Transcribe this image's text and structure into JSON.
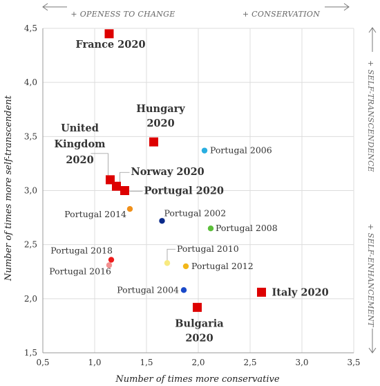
{
  "chart_data": {
    "type": "scatter",
    "xlabel": "Number of times more conservative",
    "ylabel": "Number of times more self-transcendent",
    "xlim": [
      0.5,
      3.5
    ],
    "ylim": [
      1.5,
      4.5
    ],
    "xticks": [
      "0,5",
      "1,0",
      "1,5",
      "2,0",
      "2,5",
      "3,0",
      "3,5"
    ],
    "yticks": [
      "1,5",
      "2,0",
      "2,5",
      "3,0",
      "3,5",
      "4,0",
      "4,5"
    ],
    "grid": true,
    "annotations": {
      "top_left": "+ OPENESS TO CHANGE",
      "top_right": "+ CONSERVATION",
      "right_top": "+ SELF-TRANSCENDENCE",
      "right_bottom": "+ SELF-ENHANCEMENT"
    },
    "points": [
      {
        "label": "France 2020",
        "x": 1.14,
        "y": 4.45,
        "color": "#dd0000",
        "shape": "square"
      },
      {
        "label": "Hungary 2020",
        "x": 1.57,
        "y": 3.45,
        "color": "#dd0000",
        "shape": "square"
      },
      {
        "label": "United Kingdom 2020",
        "x": 1.15,
        "y": 3.1,
        "color": "#dd0000",
        "shape": "square"
      },
      {
        "label": "Norway 2020",
        "x": 1.21,
        "y": 3.04,
        "color": "#dd0000",
        "shape": "square"
      },
      {
        "label": "Portugal 2020",
        "x": 1.29,
        "y": 3.0,
        "color": "#dd0000",
        "shape": "square"
      },
      {
        "label": "Italy 2020",
        "x": 2.61,
        "y": 2.06,
        "color": "#dd0000",
        "shape": "square"
      },
      {
        "label": "Bulgaria 2020",
        "x": 1.99,
        "y": 1.92,
        "color": "#dd0000",
        "shape": "square"
      },
      {
        "label": "Portugal 2006",
        "x": 2.06,
        "y": 3.37,
        "color": "#29aee0",
        "shape": "circle"
      },
      {
        "label": "Portugal 2014",
        "x": 1.34,
        "y": 2.83,
        "color": "#f0901a",
        "shape": "circle"
      },
      {
        "label": "Portugal 2002",
        "x": 1.65,
        "y": 2.72,
        "color": "#0a2a8a",
        "shape": "circle"
      },
      {
        "label": "Portugal 2008",
        "x": 2.12,
        "y": 2.65,
        "color": "#5cbf3a",
        "shape": "circle"
      },
      {
        "label": "Portugal 2010",
        "x": 1.7,
        "y": 2.33,
        "color": "#f8ea80",
        "shape": "circle"
      },
      {
        "label": "Portugal 2012",
        "x": 1.88,
        "y": 2.3,
        "color": "#f2b71a",
        "shape": "circle"
      },
      {
        "label": "Portugal 2018",
        "x": 1.16,
        "y": 2.36,
        "color": "#ee1a1a",
        "shape": "circle"
      },
      {
        "label": "Portugal 2016",
        "x": 1.14,
        "y": 2.31,
        "color": "#f29090",
        "shape": "circle"
      },
      {
        "label": "Portugal 2004",
        "x": 1.86,
        "y": 2.08,
        "color": "#1a49c9",
        "shape": "circle"
      }
    ]
  }
}
